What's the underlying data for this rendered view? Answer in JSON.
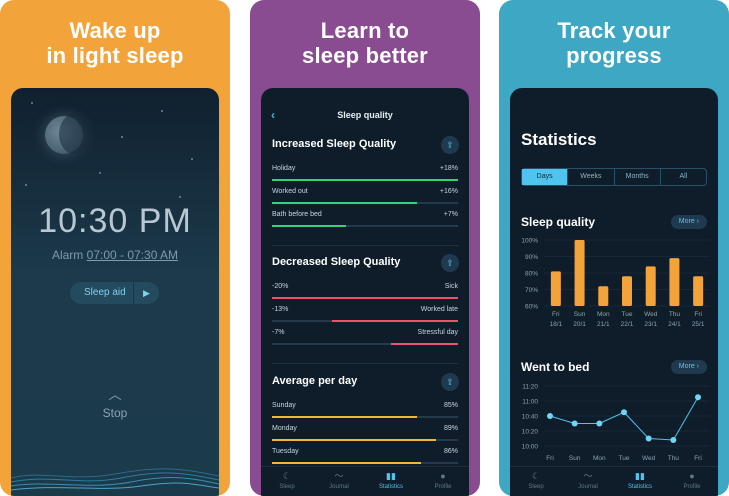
{
  "panels": {
    "wake": {
      "headline_line1": "Wake up",
      "headline_line2": "in light sleep",
      "time": "10:30 PM",
      "alarm_label": "Alarm",
      "alarm_range": "07:00 - 07:30 AM",
      "sleep_aid_label": "Sleep aid",
      "stop_label": "Stop",
      "icons": {
        "play": "play-icon",
        "up": "chevron-up-icon",
        "moon": "moon-icon"
      }
    },
    "learn": {
      "headline_line1": "Learn to",
      "headline_line2": "sleep better",
      "header_title": "Sleep quality",
      "sections": [
        {
          "title": "Increased Sleep Quality",
          "rows": [
            {
              "label": "Holiday",
              "value": "+18%",
              "fraction": 1.0,
              "color": "#36d27a",
              "align": "left"
            },
            {
              "label": "Worked out",
              "value": "+16%",
              "fraction": 0.78,
              "color": "#36d27a",
              "align": "left"
            },
            {
              "label": "Bath before bed",
              "value": "+7%",
              "fraction": 0.4,
              "color": "#36d27a",
              "align": "left"
            }
          ]
        },
        {
          "title": "Decreased Sleep Quality",
          "rows": [
            {
              "label": "Sick",
              "value": "-20%",
              "fraction": 1.0,
              "color": "#f0506b",
              "align": "right"
            },
            {
              "label": "Worked late",
              "value": "-13%",
              "fraction": 0.68,
              "color": "#f0506b",
              "align": "right"
            },
            {
              "label": "Stressful day",
              "value": "-7%",
              "fraction": 0.36,
              "color": "#f0506b",
              "align": "right"
            }
          ]
        },
        {
          "title": "Average per day",
          "rows": [
            {
              "label": "Sunday",
              "value": "85%",
              "fraction": 0.78,
              "color": "#f2b733",
              "align": "left"
            },
            {
              "label": "Monday",
              "value": "89%",
              "fraction": 0.88,
              "color": "#f2b733",
              "align": "left"
            },
            {
              "label": "Tuesday",
              "value": "86%",
              "fraction": 0.8,
              "color": "#f2b733",
              "align": "left"
            }
          ]
        }
      ]
    },
    "track": {
      "headline_line1": "Track your",
      "headline_line2": "progress",
      "title": "Statistics",
      "segments": [
        "Days",
        "Weeks",
        "Months",
        "All"
      ],
      "active_segment": 0,
      "sleep_quality_title": "Sleep quality",
      "went_to_bed_title": "Went to bed",
      "more_label": "More"
    }
  },
  "tabbar": {
    "items": [
      {
        "label": "Sleep",
        "icon": "moon-icon"
      },
      {
        "label": "Journal",
        "icon": "pulse-icon"
      },
      {
        "label": "Statistics",
        "icon": "bar-chart-icon"
      },
      {
        "label": "Profile",
        "icon": "person-icon"
      }
    ],
    "active_index": 2
  },
  "colors": {
    "orange_panel": "#f2a33a",
    "purple_panel": "#8a4c91",
    "blue_panel": "#3ea7c4",
    "accent": "#4fc4ee"
  },
  "chart_data": [
    {
      "type": "bar",
      "title": "Sleep quality",
      "categories": [
        "Fri 18/1",
        "Sun 20/1",
        "Mon 21/1",
        "Tue 22/1",
        "Wed 23/1",
        "Thu 24/1",
        "Fri 25/1"
      ],
      "values": [
        81,
        100,
        72,
        78,
        84,
        89,
        78
      ],
      "yticks": [
        "100%",
        "90%",
        "80%",
        "70%",
        "60%"
      ],
      "ylim": [
        60,
        100
      ],
      "grid": true
    },
    {
      "type": "line",
      "title": "Went to bed",
      "categories": [
        "Fri",
        "Sun",
        "Mon",
        "Tue",
        "Wed",
        "Thu",
        "Fri"
      ],
      "values_minutes": [
        640,
        630,
        630,
        645,
        610,
        608,
        665
      ],
      "yticks": [
        "11:20",
        "11:00",
        "10:40",
        "10:20",
        "10:00"
      ],
      "ylim": [
        600,
        680
      ],
      "grid": true
    }
  ]
}
